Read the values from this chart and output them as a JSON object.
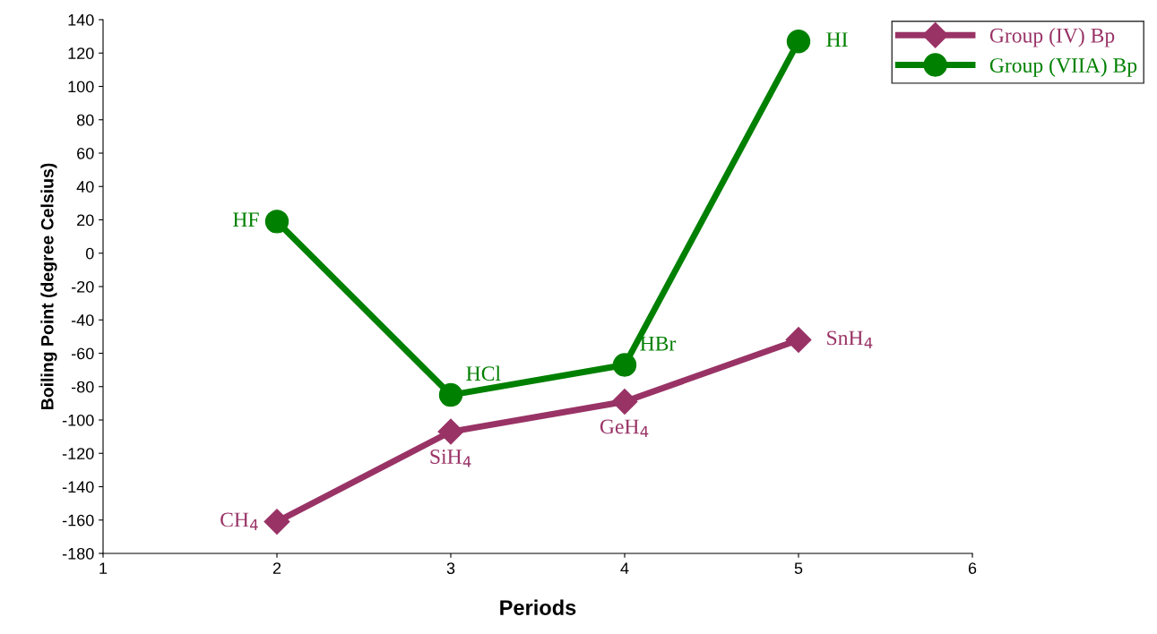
{
  "chart_data": {
    "type": "line",
    "xlabel": "Periods",
    "ylabel": "Boiling Point (degree Celsius)",
    "x": [
      2,
      3,
      4,
      5
    ],
    "series": [
      {
        "name": "Group (IV) Bp",
        "color": "#993366",
        "marker": "diamond",
        "values": [
          -161,
          -107,
          -89,
          -52
        ]
      },
      {
        "name": "Group (VIIA) Bp",
        "color": "#008000",
        "marker": "circle",
        "values": [
          19,
          -85,
          -67,
          127
        ]
      }
    ],
    "annotations": [
      {
        "text": "CH$_{4}$",
        "x": 2,
        "y": -161
      },
      {
        "text": "SiH$_{4}$",
        "x": 3,
        "y": -107
      },
      {
        "text": "GeH$_{4}$",
        "x": 4,
        "y": -89
      },
      {
        "text": "SnH$_{4}$",
        "x": 5,
        "y": -52
      },
      {
        "text": "HF",
        "x": 2,
        "y": 19
      },
      {
        "text": "HCl",
        "x": 3,
        "y": -85
      },
      {
        "text": "HBr",
        "x": 4,
        "y": -67
      },
      {
        "text": "HI",
        "x": 5,
        "y": 127
      }
    ],
    "xlim": [
      1,
      6
    ],
    "xticks": [
      1,
      2,
      3,
      4,
      5,
      6
    ],
    "ylim": [
      -180,
      140
    ],
    "yticks": [
      -180,
      -160,
      -140,
      -120,
      -100,
      -80,
      -60,
      -40,
      -20,
      0,
      20,
      40,
      60,
      80,
      100,
      120,
      140
    ],
    "grid": false,
    "legend": "top right",
    "line_style": "solid"
  }
}
